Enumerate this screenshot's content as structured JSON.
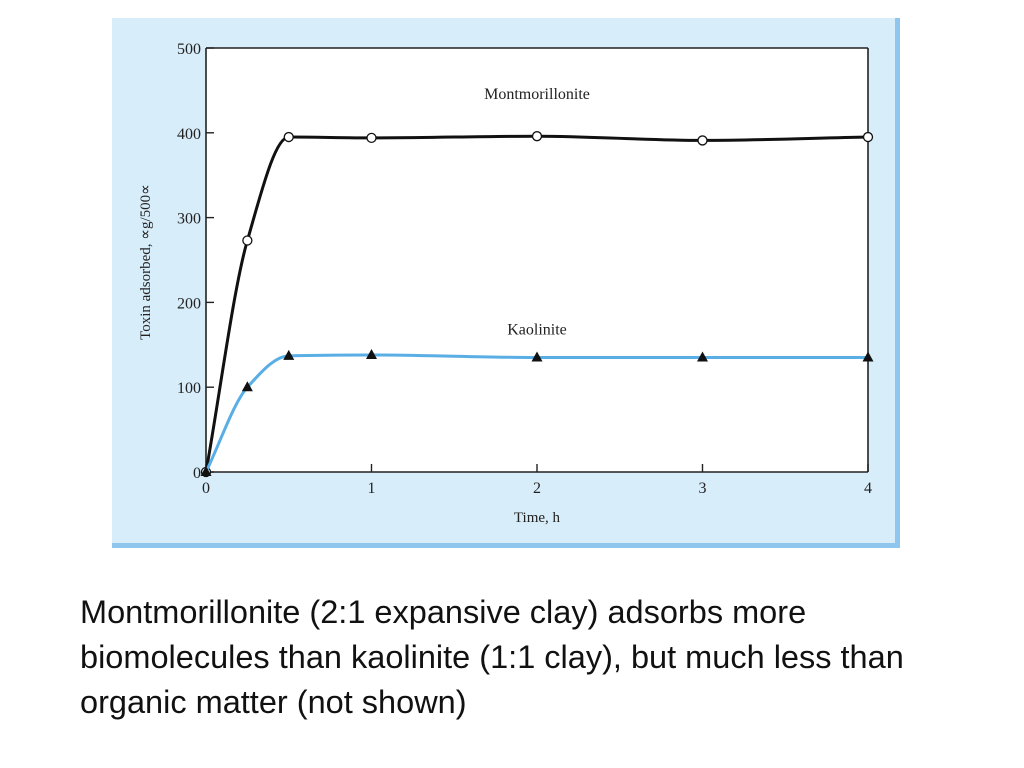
{
  "colors": {
    "panel_background": "#d8edfa",
    "panel_border": "#8fc6ee",
    "plot_background": "#ffffff",
    "axis": "#222222",
    "montmorillonite_line": "#111111",
    "kaolinite_line": "#5aaee6"
  },
  "chart_data": {
    "type": "line",
    "xlabel": "Time, h",
    "ylabel": "Toxin adsorbed, ∝g/500∝",
    "xlim": [
      0,
      4
    ],
    "ylim": [
      0,
      500
    ],
    "x_ticks": [
      "0",
      "1",
      "2",
      "3",
      "4"
    ],
    "y_ticks": [
      "0",
      "100",
      "200",
      "300",
      "400",
      "500"
    ],
    "grid": false,
    "series": [
      {
        "name": "Montmorillonite",
        "marker": "open-circle",
        "points": [
          [
            0,
            0
          ],
          [
            0.25,
            273
          ],
          [
            0.5,
            395
          ],
          [
            1,
            394
          ],
          [
            2,
            396
          ],
          [
            3,
            391
          ],
          [
            4,
            395
          ]
        ]
      },
      {
        "name": "Kaolinite",
        "marker": "filled-triangle",
        "points": [
          [
            0,
            0
          ],
          [
            0.25,
            100
          ],
          [
            0.5,
            137
          ],
          [
            1,
            138
          ],
          [
            2,
            135
          ],
          [
            3,
            135
          ],
          [
            4,
            135
          ]
        ]
      }
    ]
  },
  "caption": "Montmorillonite (2:1 expansive clay) adsorbs more biomolecules than kaolinite (1:1 clay), but much less than organic matter (not shown)"
}
